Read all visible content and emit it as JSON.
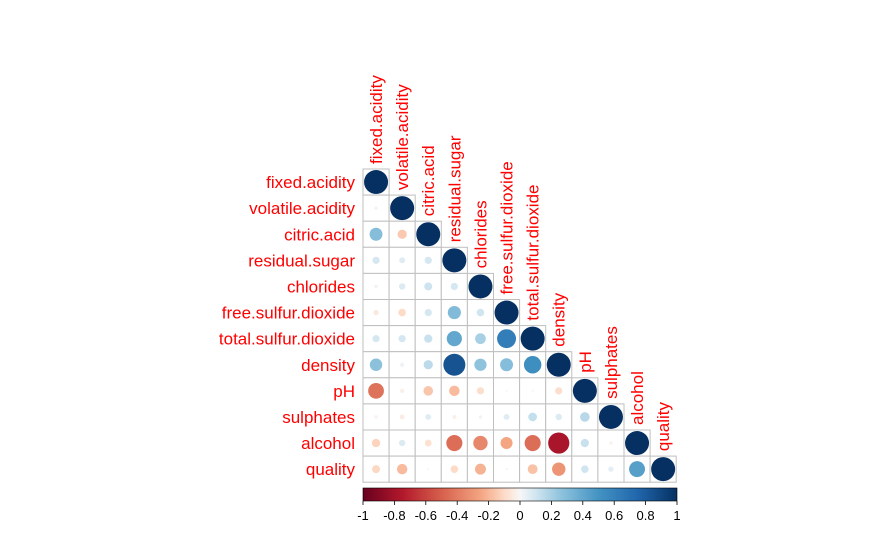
{
  "chart_data": {
    "type": "heatmap",
    "variables": [
      "fixed.acidity",
      "volatile.acidity",
      "citric.acid",
      "residual.sugar",
      "chlorides",
      "free.sulfur.dioxide",
      "total.sulfur.dioxide",
      "density",
      "pH",
      "sulphates",
      "alcohol",
      "quality"
    ],
    "matrix_lower": [
      [
        1.0
      ],
      [
        -0.02,
        1.0
      ],
      [
        0.29,
        -0.15,
        1.0
      ],
      [
        0.09,
        0.06,
        0.09,
        1.0
      ],
      [
        0.02,
        0.07,
        0.11,
        0.09,
        1.0
      ],
      [
        -0.05,
        -0.1,
        0.09,
        0.3,
        0.1,
        1.0
      ],
      [
        0.09,
        0.09,
        0.12,
        0.4,
        0.2,
        0.62,
        1.0
      ],
      [
        0.27,
        0.03,
        0.15,
        0.84,
        0.26,
        0.29,
        0.53,
        1.0
      ],
      [
        -0.43,
        -0.03,
        -0.16,
        -0.19,
        -0.09,
        0.0,
        0.0,
        -0.09,
        1.0
      ],
      [
        -0.02,
        -0.04,
        0.06,
        -0.03,
        0.02,
        0.06,
        0.13,
        0.07,
        0.16,
        1.0
      ],
      [
        -0.12,
        0.07,
        -0.08,
        -0.45,
        -0.36,
        -0.25,
        -0.45,
        -0.78,
        0.12,
        -0.02,
        1.0
      ],
      [
        -0.11,
        -0.19,
        -0.01,
        -0.1,
        -0.21,
        0.01,
        -0.17,
        -0.31,
        0.1,
        0.05,
        0.44,
        1.0
      ]
    ],
    "colorbar": {
      "range": [
        -1,
        1
      ],
      "ticks": [
        "-1",
        "-0.8",
        "-0.6",
        "-0.4",
        "-0.2",
        "0",
        "0.2",
        "0.4",
        "0.6",
        "0.8",
        "1"
      ]
    },
    "colors": {
      "negative_end": "#67001f",
      "negative_mid": "#d6604d",
      "neutral": "#f7f7f7",
      "positive_mid": "#4393c3",
      "positive_end": "#053061",
      "label": "#ff0000",
      "grid": "#bfbfbf"
    },
    "marker": "circle",
    "layout": "lower-triangle"
  }
}
